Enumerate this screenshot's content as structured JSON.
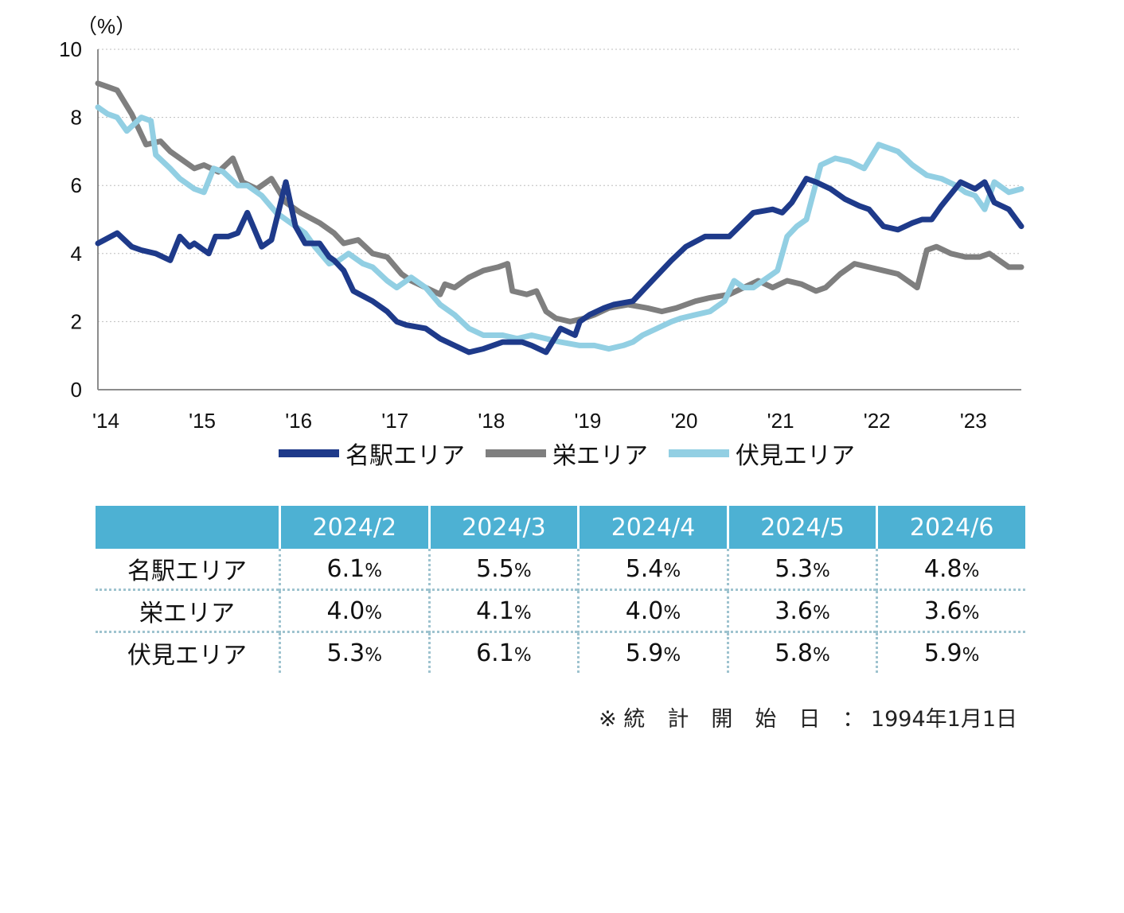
{
  "chart_data": {
    "type": "line",
    "unit_label": "（%）",
    "ylim": [
      0,
      10
    ],
    "y_ticks": [
      0,
      2,
      4,
      6,
      8,
      10
    ],
    "x_tick_labels": [
      "'14",
      "'15",
      "'16",
      "'17",
      "'18",
      "'19",
      "'20",
      "'21",
      "'22",
      "'23"
    ],
    "x_tick_years": [
      2014,
      2015,
      2016,
      2017,
      2018,
      2019,
      2020,
      2021,
      2022,
      2023
    ],
    "xlim": [
      2014.0,
      2023.58
    ],
    "grid": "horizontal-dotted",
    "legend_position": "bottom",
    "series": [
      {
        "name": "名駅エリア",
        "color": "#1e3a8a",
        "x": [
          2014.0,
          2014.2,
          2014.35,
          2014.45,
          2014.6,
          2014.75,
          2014.85,
          2014.95,
          2015.0,
          2015.15,
          2015.22,
          2015.35,
          2015.45,
          2015.55,
          2015.7,
          2015.8,
          2015.95,
          2016.05,
          2016.15,
          2016.3,
          2016.4,
          2016.45,
          2016.55,
          2016.65,
          2016.85,
          2017.0,
          2017.1,
          2017.2,
          2017.4,
          2017.55,
          2017.7,
          2017.85,
          2018.0,
          2018.2,
          2018.4,
          2018.5,
          2018.65,
          2018.8,
          2018.95,
          2019.0,
          2019.1,
          2019.25,
          2019.35,
          2019.55,
          2019.75,
          2019.95,
          2020.1,
          2020.3,
          2020.55,
          2020.8,
          2021.0,
          2021.1,
          2021.2,
          2021.35,
          2021.45,
          2021.6,
          2021.75,
          2021.9,
          2022.0,
          2022.15,
          2022.3,
          2022.45,
          2022.55,
          2022.65,
          2022.75,
          2022.95,
          2023.1,
          2023.2,
          2023.3,
          2023.45,
          2023.58
        ],
        "values": [
          4.3,
          4.6,
          4.2,
          4.1,
          4.0,
          3.8,
          4.5,
          4.2,
          4.3,
          4.0,
          4.5,
          4.5,
          4.6,
          5.2,
          4.2,
          4.4,
          6.1,
          4.8,
          4.3,
          4.3,
          3.9,
          3.8,
          3.5,
          2.9,
          2.6,
          2.3,
          2.0,
          1.9,
          1.8,
          1.5,
          1.3,
          1.1,
          1.2,
          1.4,
          1.4,
          1.3,
          1.1,
          1.8,
          1.6,
          2.0,
          2.2,
          2.4,
          2.5,
          2.6,
          3.2,
          3.8,
          4.2,
          4.5,
          4.5,
          5.2,
          5.3,
          5.2,
          5.5,
          6.2,
          6.1,
          5.9,
          5.6,
          5.4,
          5.3,
          4.8,
          4.7,
          4.9,
          5.0,
          5.0,
          5.4,
          6.1,
          5.9,
          6.1,
          5.5,
          5.3,
          4.8
        ]
      },
      {
        "name": "栄エリア",
        "color": "#7f7f7f",
        "x": [
          2014.0,
          2014.1,
          2014.2,
          2014.35,
          2014.5,
          2014.65,
          2014.75,
          2014.9,
          2015.0,
          2015.1,
          2015.25,
          2015.4,
          2015.5,
          2015.65,
          2015.8,
          2015.95,
          2016.1,
          2016.3,
          2016.45,
          2016.55,
          2016.7,
          2016.85,
          2017.0,
          2017.15,
          2017.25,
          2017.4,
          2017.55,
          2017.6,
          2017.7,
          2017.85,
          2018.0,
          2018.15,
          2018.25,
          2018.3,
          2018.45,
          2018.55,
          2018.65,
          2018.75,
          2018.9,
          2019.05,
          2019.15,
          2019.3,
          2019.5,
          2019.7,
          2019.85,
          2020.0,
          2020.2,
          2020.35,
          2020.55,
          2020.7,
          2020.85,
          2021.0,
          2021.15,
          2021.3,
          2021.45,
          2021.55,
          2021.7,
          2021.85,
          2022.0,
          2022.15,
          2022.3,
          2022.45,
          2022.5,
          2022.6,
          2022.7,
          2022.85,
          2023.0,
          2023.15,
          2023.25,
          2023.35,
          2023.45,
          2023.58
        ],
        "values": [
          9.0,
          8.9,
          8.8,
          8.1,
          7.2,
          7.3,
          7.0,
          6.7,
          6.5,
          6.6,
          6.4,
          6.8,
          6.1,
          5.9,
          6.2,
          5.5,
          5.2,
          4.9,
          4.6,
          4.3,
          4.4,
          4.0,
          3.9,
          3.4,
          3.2,
          3.0,
          2.8,
          3.1,
          3.0,
          3.3,
          3.5,
          3.6,
          3.7,
          2.9,
          2.8,
          2.9,
          2.3,
          2.1,
          2.0,
          2.1,
          2.2,
          2.4,
          2.5,
          2.4,
          2.3,
          2.4,
          2.6,
          2.7,
          2.8,
          3.0,
          3.2,
          3.0,
          3.2,
          3.1,
          2.9,
          3.0,
          3.4,
          3.7,
          3.6,
          3.5,
          3.4,
          3.1,
          3.0,
          4.1,
          4.2,
          4.0,
          3.9,
          3.9,
          4.0,
          3.8,
          3.6,
          3.6
        ]
      },
      {
        "name": "伏見エリア",
        "color": "#92cfe3",
        "x": [
          2014.0,
          2014.1,
          2014.2,
          2014.3,
          2014.45,
          2014.55,
          2014.6,
          2014.75,
          2014.85,
          2015.0,
          2015.1,
          2015.2,
          2015.3,
          2015.45,
          2015.55,
          2015.7,
          2015.85,
          2016.0,
          2016.15,
          2016.25,
          2016.4,
          2016.5,
          2016.6,
          2016.75,
          2016.85,
          2017.0,
          2017.1,
          2017.25,
          2017.4,
          2017.55,
          2017.7,
          2017.85,
          2018.0,
          2018.2,
          2018.35,
          2018.5,
          2018.65,
          2018.8,
          2019.0,
          2019.15,
          2019.3,
          2019.45,
          2019.55,
          2019.65,
          2019.8,
          2019.95,
          2020.05,
          2020.2,
          2020.35,
          2020.5,
          2020.6,
          2020.7,
          2020.8,
          2020.9,
          2021.05,
          2021.15,
          2021.25,
          2021.35,
          2021.5,
          2021.65,
          2021.8,
          2021.95,
          2022.1,
          2022.3,
          2022.45,
          2022.6,
          2022.75,
          2022.9,
          2023.0,
          2023.1,
          2023.2,
          2023.3,
          2023.45,
          2023.58
        ],
        "values": [
          8.3,
          8.1,
          8.0,
          7.6,
          8.0,
          7.9,
          6.9,
          6.5,
          6.2,
          5.9,
          5.8,
          6.5,
          6.4,
          6.0,
          6.0,
          5.7,
          5.2,
          4.9,
          4.6,
          4.2,
          3.7,
          3.8,
          4.0,
          3.7,
          3.6,
          3.2,
          3.0,
          3.3,
          3.0,
          2.5,
          2.2,
          1.8,
          1.6,
          1.6,
          1.5,
          1.6,
          1.5,
          1.4,
          1.3,
          1.3,
          1.2,
          1.3,
          1.4,
          1.6,
          1.8,
          2.0,
          2.1,
          2.2,
          2.3,
          2.6,
          3.2,
          3.0,
          3.0,
          3.2,
          3.5,
          4.5,
          4.8,
          5.0,
          6.6,
          6.8,
          6.7,
          6.5,
          7.2,
          7.0,
          6.6,
          6.3,
          6.2,
          6.0,
          5.8,
          5.7,
          5.3,
          6.1,
          5.8,
          5.9
        ]
      }
    ]
  },
  "table": {
    "headers": [
      "",
      "2024/2",
      "2024/3",
      "2024/4",
      "2024/5",
      "2024/6"
    ],
    "unit": "%",
    "rows": [
      {
        "label": "名駅エリア",
        "values": [
          "6.1",
          "5.5",
          "5.4",
          "5.3",
          "4.8"
        ]
      },
      {
        "label": "栄エリア",
        "values": [
          "4.0",
          "4.1",
          "4.0",
          "3.6",
          "3.6"
        ]
      },
      {
        "label": "伏見エリア",
        "values": [
          "5.3",
          "6.1",
          "5.9",
          "5.8",
          "5.9"
        ]
      }
    ]
  },
  "note": {
    "mark": "※",
    "label": "統計開始日",
    "colon": "：",
    "date": "1994年1月1日"
  }
}
